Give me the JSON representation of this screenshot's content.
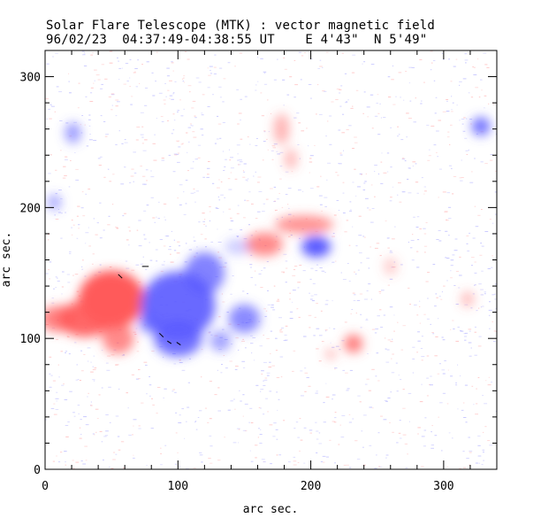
{
  "title": "Solar Flare Telescope (MTK) : vector magnetic field",
  "subtitle": "96/02/23  04:37:49-04:38:55 UT    E 4'43\"  N 5'49\"",
  "colors": {
    "positive": "#ff5a5a",
    "negative": "#5a5aff",
    "noise_positive": "#ffc8c8",
    "noise_negative": "#c8c8ff",
    "axis": "#000000",
    "background": "#ffffff"
  },
  "chart_data": {
    "type": "heatmap",
    "title": "Solar Flare Telescope (MTK) : vector magnetic field",
    "xlabel": "arc sec.",
    "ylabel": "arc sec.",
    "xlim": [
      0,
      340
    ],
    "ylim": [
      0,
      320
    ],
    "xticks": [
      0,
      100,
      200,
      300
    ],
    "yticks": [
      0,
      100,
      200,
      300
    ],
    "polarity_regions": [
      {
        "polarity": "positive",
        "x": 50,
        "y": 130,
        "rx": 25,
        "ry": 22,
        "strength": 1.0
      },
      {
        "polarity": "positive",
        "x": 30,
        "y": 115,
        "rx": 20,
        "ry": 14,
        "strength": 0.9
      },
      {
        "polarity": "positive",
        "x": 10,
        "y": 115,
        "rx": 14,
        "ry": 10,
        "strength": 0.75
      },
      {
        "polarity": "positive",
        "x": 55,
        "y": 100,
        "rx": 12,
        "ry": 12,
        "strength": 0.7
      },
      {
        "polarity": "positive",
        "x": 165,
        "y": 172,
        "rx": 14,
        "ry": 9,
        "strength": 0.7
      },
      {
        "polarity": "positive",
        "x": 195,
        "y": 187,
        "rx": 22,
        "ry": 7,
        "strength": 0.65
      },
      {
        "polarity": "positive",
        "x": 232,
        "y": 96,
        "rx": 7,
        "ry": 7,
        "strength": 0.8
      },
      {
        "polarity": "positive",
        "x": 215,
        "y": 88,
        "rx": 4,
        "ry": 4,
        "strength": 0.45
      },
      {
        "polarity": "positive",
        "x": 178,
        "y": 260,
        "rx": 6,
        "ry": 12,
        "strength": 0.45
      },
      {
        "polarity": "positive",
        "x": 185,
        "y": 237,
        "rx": 5,
        "ry": 8,
        "strength": 0.4
      },
      {
        "polarity": "positive",
        "x": 318,
        "y": 130,
        "rx": 5,
        "ry": 6,
        "strength": 0.4
      },
      {
        "polarity": "positive",
        "x": 260,
        "y": 155,
        "rx": 5,
        "ry": 7,
        "strength": 0.3
      },
      {
        "polarity": "negative",
        "x": 100,
        "y": 125,
        "rx": 28,
        "ry": 26,
        "strength": 0.9
      },
      {
        "polarity": "negative",
        "x": 100,
        "y": 100,
        "rx": 18,
        "ry": 14,
        "strength": 0.85
      },
      {
        "polarity": "negative",
        "x": 120,
        "y": 150,
        "rx": 15,
        "ry": 16,
        "strength": 0.75
      },
      {
        "polarity": "negative",
        "x": 150,
        "y": 115,
        "rx": 12,
        "ry": 11,
        "strength": 0.7
      },
      {
        "polarity": "negative",
        "x": 132,
        "y": 98,
        "rx": 8,
        "ry": 8,
        "strength": 0.55
      },
      {
        "polarity": "negative",
        "x": 78,
        "y": 112,
        "rx": 8,
        "ry": 8,
        "strength": 0.6
      },
      {
        "polarity": "negative",
        "x": 204,
        "y": 170,
        "rx": 11,
        "ry": 8,
        "strength": 1.0
      },
      {
        "polarity": "negative",
        "x": 328,
        "y": 262,
        "rx": 7,
        "ry": 7,
        "strength": 0.85
      },
      {
        "polarity": "negative",
        "x": 21,
        "y": 257,
        "rx": 6,
        "ry": 8,
        "strength": 0.6
      },
      {
        "polarity": "negative",
        "x": 7,
        "y": 204,
        "rx": 5,
        "ry": 6,
        "strength": 0.55
      },
      {
        "polarity": "negative",
        "x": 145,
        "y": 170,
        "rx": 10,
        "ry": 6,
        "strength": 0.3
      }
    ],
    "transverse_vectors": [
      {
        "x": 55,
        "y": 149,
        "dx": 3,
        "dy": -3
      },
      {
        "x": 73,
        "y": 155,
        "dx": 5,
        "dy": 0
      },
      {
        "x": 86,
        "y": 104,
        "dx": 3,
        "dy": -3
      },
      {
        "x": 92,
        "y": 98,
        "dx": 3,
        "dy": -2
      },
      {
        "x": 99,
        "y": 97,
        "dx": 3,
        "dy": -2
      }
    ]
  }
}
